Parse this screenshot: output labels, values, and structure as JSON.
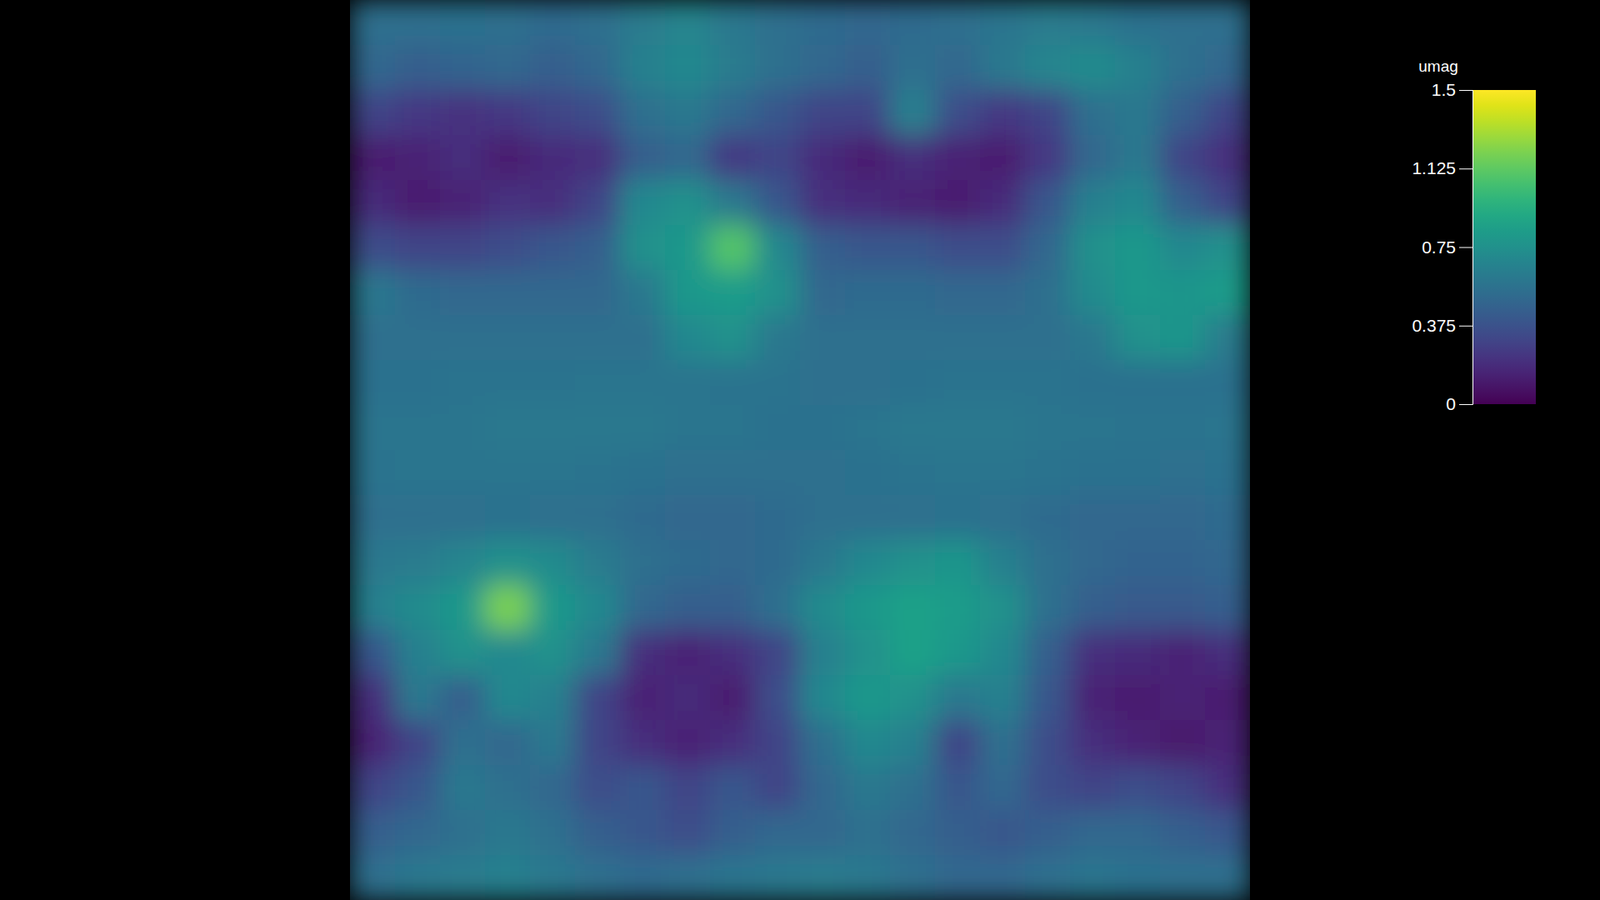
{
  "chart_data": {
    "type": "heatmap",
    "tick_labels": false,
    "colorbar_title": "umag",
    "color_range": [
      0,
      1.5
    ],
    "color_ticks": [
      0,
      0.375,
      0.75,
      1.125,
      1.5
    ],
    "values": [
      [
        0.55,
        0.55,
        0.56,
        0.55,
        0.52,
        0.55,
        0.62,
        0.68,
        0.6,
        0.55,
        0.52,
        0.5,
        0.52,
        0.55,
        0.58,
        0.62,
        0.6,
        0.56,
        0.55,
        0.55
      ],
      [
        0.5,
        0.45,
        0.48,
        0.5,
        0.45,
        0.5,
        0.65,
        0.7,
        0.62,
        0.55,
        0.5,
        0.45,
        0.55,
        0.5,
        0.6,
        0.68,
        0.72,
        0.65,
        0.55,
        0.5
      ],
      [
        0.3,
        0.25,
        0.22,
        0.25,
        0.3,
        0.35,
        0.55,
        0.6,
        0.5,
        0.4,
        0.3,
        0.3,
        0.65,
        0.35,
        0.25,
        0.3,
        0.55,
        0.6,
        0.45,
        0.3
      ],
      [
        0.12,
        0.15,
        0.2,
        0.12,
        0.18,
        0.2,
        0.45,
        0.5,
        0.25,
        0.3,
        0.18,
        0.12,
        0.2,
        0.15,
        0.12,
        0.25,
        0.5,
        0.6,
        0.3,
        0.2
      ],
      [
        0.18,
        0.12,
        0.15,
        0.22,
        0.2,
        0.3,
        0.7,
        0.75,
        0.6,
        0.4,
        0.2,
        0.18,
        0.15,
        0.12,
        0.18,
        0.4,
        0.65,
        0.7,
        0.45,
        0.3
      ],
      [
        0.35,
        0.3,
        0.3,
        0.35,
        0.4,
        0.45,
        0.75,
        0.8,
        1.1,
        0.7,
        0.45,
        0.4,
        0.4,
        0.35,
        0.35,
        0.5,
        0.75,
        0.8,
        0.7,
        0.75
      ],
      [
        0.6,
        0.52,
        0.5,
        0.5,
        0.5,
        0.5,
        0.6,
        0.8,
        0.82,
        0.75,
        0.5,
        0.52,
        0.52,
        0.5,
        0.5,
        0.55,
        0.72,
        0.8,
        0.78,
        0.82
      ],
      [
        0.55,
        0.55,
        0.55,
        0.55,
        0.55,
        0.55,
        0.55,
        0.7,
        0.75,
        0.6,
        0.55,
        0.55,
        0.55,
        0.55,
        0.55,
        0.55,
        0.6,
        0.75,
        0.78,
        0.62
      ],
      [
        0.56,
        0.56,
        0.57,
        0.57,
        0.57,
        0.58,
        0.58,
        0.58,
        0.57,
        0.57,
        0.55,
        0.55,
        0.56,
        0.57,
        0.57,
        0.57,
        0.56,
        0.56,
        0.56,
        0.56
      ],
      [
        0.58,
        0.58,
        0.58,
        0.6,
        0.6,
        0.6,
        0.6,
        0.58,
        0.58,
        0.56,
        0.56,
        0.58,
        0.6,
        0.6,
        0.6,
        0.58,
        0.58,
        0.57,
        0.57,
        0.58
      ],
      [
        0.57,
        0.58,
        0.58,
        0.58,
        0.58,
        0.57,
        0.56,
        0.55,
        0.54,
        0.54,
        0.55,
        0.56,
        0.57,
        0.58,
        0.58,
        0.57,
        0.56,
        0.56,
        0.55,
        0.56
      ],
      [
        0.55,
        0.55,
        0.55,
        0.56,
        0.55,
        0.54,
        0.52,
        0.5,
        0.5,
        0.52,
        0.54,
        0.55,
        0.55,
        0.56,
        0.55,
        0.52,
        0.5,
        0.5,
        0.5,
        0.52
      ],
      [
        0.6,
        0.62,
        0.68,
        0.75,
        0.72,
        0.62,
        0.55,
        0.52,
        0.5,
        0.52,
        0.6,
        0.7,
        0.75,
        0.78,
        0.65,
        0.55,
        0.5,
        0.48,
        0.48,
        0.5
      ],
      [
        0.65,
        0.72,
        0.8,
        1.2,
        0.8,
        0.7,
        0.5,
        0.45,
        0.45,
        0.55,
        0.72,
        0.8,
        0.85,
        0.82,
        0.75,
        0.55,
        0.45,
        0.42,
        0.42,
        0.45
      ],
      [
        0.4,
        0.65,
        0.75,
        0.7,
        0.75,
        0.6,
        0.2,
        0.15,
        0.2,
        0.3,
        0.65,
        0.75,
        0.85,
        0.8,
        0.7,
        0.45,
        0.2,
        0.18,
        0.15,
        0.2
      ],
      [
        0.2,
        0.6,
        0.45,
        0.7,
        0.65,
        0.3,
        0.15,
        0.18,
        0.12,
        0.35,
        0.7,
        0.8,
        0.75,
        0.6,
        0.65,
        0.4,
        0.15,
        0.12,
        0.15,
        0.12
      ],
      [
        0.15,
        0.3,
        0.55,
        0.5,
        0.6,
        0.3,
        0.2,
        0.15,
        0.2,
        0.3,
        0.55,
        0.7,
        0.65,
        0.3,
        0.55,
        0.35,
        0.2,
        0.15,
        0.1,
        0.15
      ],
      [
        0.3,
        0.4,
        0.6,
        0.55,
        0.5,
        0.35,
        0.4,
        0.3,
        0.4,
        0.3,
        0.5,
        0.6,
        0.55,
        0.4,
        0.5,
        0.35,
        0.3,
        0.35,
        0.3,
        0.2
      ],
      [
        0.45,
        0.5,
        0.55,
        0.6,
        0.55,
        0.45,
        0.4,
        0.35,
        0.45,
        0.5,
        0.5,
        0.55,
        0.5,
        0.45,
        0.4,
        0.45,
        0.5,
        0.5,
        0.45,
        0.4
      ],
      [
        0.55,
        0.6,
        0.62,
        0.65,
        0.6,
        0.55,
        0.52,
        0.55,
        0.58,
        0.6,
        0.62,
        0.6,
        0.55,
        0.5,
        0.5,
        0.55,
        0.58,
        0.56,
        0.55,
        0.55
      ]
    ]
  }
}
